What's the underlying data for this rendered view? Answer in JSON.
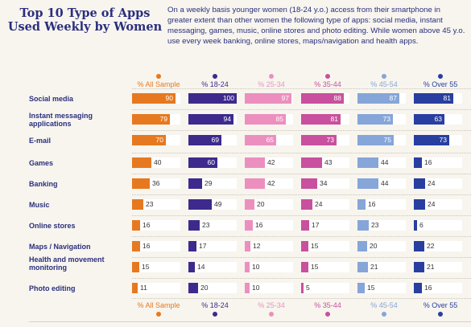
{
  "title": "Top 10 Type of Apps Used Weekly by Women",
  "description": "On a weekly basis younger women (18-24 y.o.) access from their smartphone in greater extent than other women the following type of apps: social media, instant messaging,  games, music, online stores and photo editing. While women above 45 y.o. use every week banking, online stores, maps/navigation and health apps.",
  "colors": {
    "all_sample": "#e6791f",
    "age_18_24": "#3d2a8c",
    "age_25_34": "#ec8fbf",
    "age_35_44": "#c9509e",
    "age_45_54": "#86a5d8",
    "over_55": "#283ea0"
  },
  "chart_data": {
    "type": "bar",
    "title": "Top 10 Type of Apps Used Weekly by Women",
    "xlim": [
      0,
      100
    ],
    "categories": [
      "Social media",
      "Instant messaging applications",
      "E-mail",
      "Games",
      "Banking",
      "Music",
      "Online stores",
      "Maps / Navigation",
      "Health and movement monitoring",
      "Photo editing"
    ],
    "series": [
      {
        "name": "% All Sample",
        "color": "#e6791f",
        "values": [
          90,
          79,
          70,
          40,
          36,
          23,
          16,
          16,
          15,
          11
        ]
      },
      {
        "name": "% 18-24",
        "color": "#3d2a8c",
        "values": [
          100,
          94,
          69,
          60,
          29,
          49,
          23,
          17,
          14,
          20
        ]
      },
      {
        "name": "% 25-34",
        "color": "#ec8fbf",
        "values": [
          97,
          85,
          65,
          42,
          42,
          20,
          16,
          12,
          10,
          10
        ]
      },
      {
        "name": "% 35-44",
        "color": "#c9509e",
        "values": [
          88,
          81,
          73,
          43,
          34,
          24,
          17,
          15,
          15,
          5
        ]
      },
      {
        "name": "% 45-54",
        "color": "#86a5d8",
        "values": [
          87,
          73,
          75,
          44,
          44,
          16,
          23,
          20,
          21,
          15
        ]
      },
      {
        "name": "% Over 55",
        "color": "#283ea0",
        "values": [
          81,
          63,
          73,
          16,
          24,
          24,
          6,
          22,
          21,
          16
        ]
      }
    ]
  }
}
